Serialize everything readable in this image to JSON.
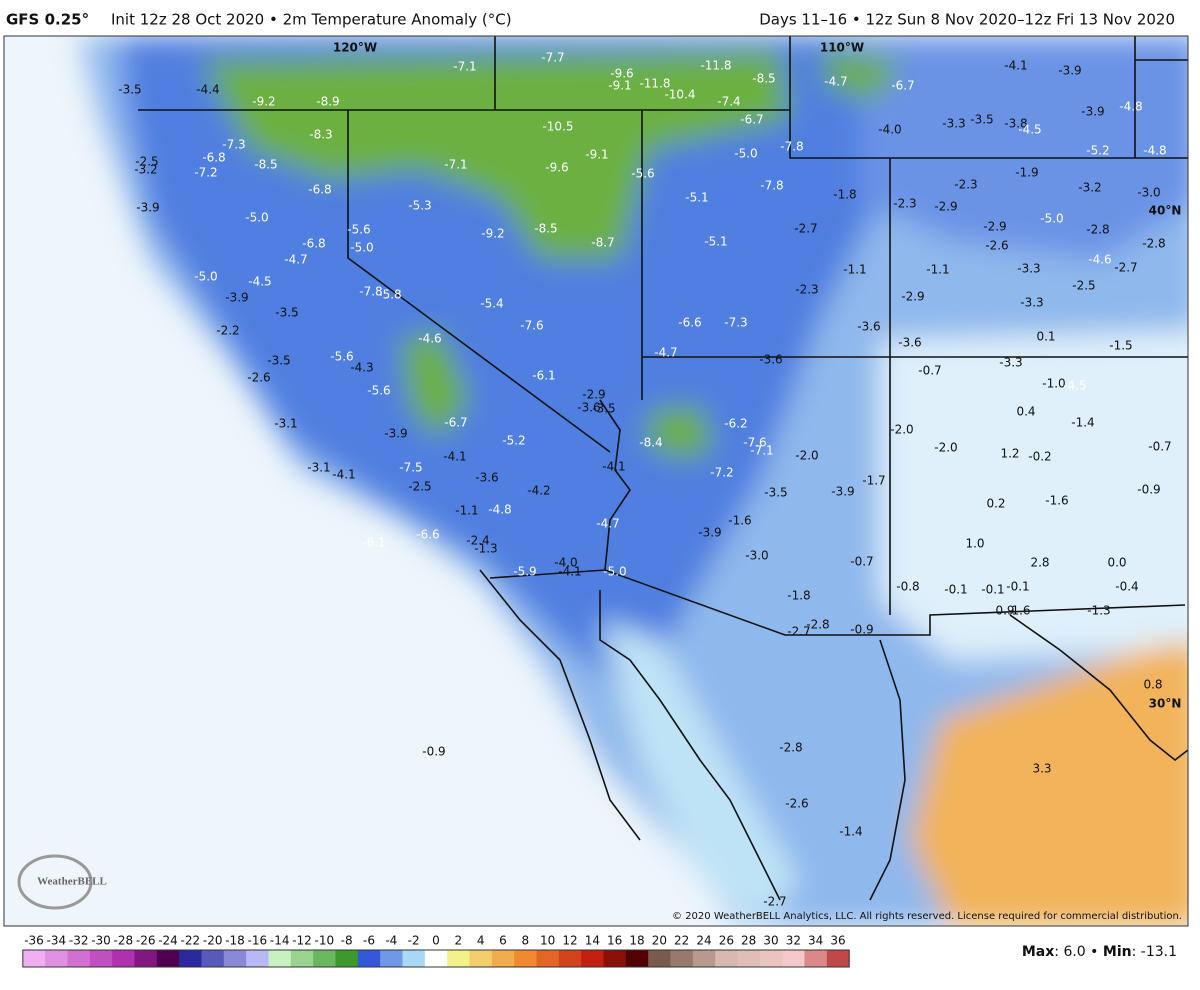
{
  "header": {
    "model": "GFS 0.25°",
    "title": "Init 12z 28 Oct 2020 • 2m Temperature Anomaly (°C)",
    "period": "Days 11–16 • 12z Sun 8 Nov 2020–12z Fri 13 Nov 2020"
  },
  "map": {
    "grid_labels": [
      "120°W",
      "110°W",
      "40°N",
      "30°N"
    ],
    "values": [
      "-3.5",
      "-4.4",
      "-9.2",
      "-8.9",
      "-7.1",
      "-7.7",
      "-9.6",
      "-9.1",
      "-11.8",
      "-11.8",
      "-10.4",
      "-8.5",
      "-7.4",
      "-4.7",
      "-6.7",
      "-4.1",
      "-3.9",
      "-3.9",
      "-4.8",
      "-8.3",
      "-10.5",
      "-6.7",
      "-4.0",
      "-3.3",
      "-3.5",
      "-3.8",
      "-4.5",
      "-7.3",
      "-9.1",
      "-5.0",
      "-7.8",
      "-5.2",
      "-4.8",
      "-6.8",
      "-2.5",
      "-3.2",
      "-7.2",
      "-8.5",
      "-7.1",
      "-9.6",
      "-5.6",
      "-1.9",
      "-2.3",
      "-6.8",
      "-5.1",
      "-7.8",
      "-1.8",
      "-3.2",
      "-3.0",
      "-3.9",
      "-5.3",
      "-2.3",
      "-2.9",
      "-5.0",
      "-5.0",
      "-5.6",
      "-9.2",
      "-8.5",
      "-8.7",
      "-5.1",
      "-2.7",
      "-2.9",
      "-2.8",
      "-5.0",
      "-6.8",
      "-2.6",
      "-2.8",
      "-4.7",
      "-4.6",
      "-2.7",
      "-1.1",
      "-1.1",
      "-3.3",
      "-5.0",
      "-4.5",
      "-2.3",
      "-2.5",
      "-3.9",
      "-7.8",
      "-5.8",
      "-2.9",
      "-3.3",
      "-5.4",
      "-3.5",
      "-2.2",
      "-7.6",
      "-6.6",
      "-7.3",
      "-3.6",
      "0.1",
      "-4.6",
      "-3.6",
      "-1.5",
      "-4.7",
      "-5.6",
      "-4.3",
      "-3.6",
      "-3.3",
      "-3.5",
      "-0.7",
      "-2.6",
      "-6.1",
      "-1.0",
      "-4.5",
      "-5.6",
      "-2.9",
      "-3.6",
      "-3.5",
      "0.4",
      "-6.7",
      "-6.2",
      "-1.4",
      "-3.1",
      "-3.9",
      "-2.0",
      "-8.4",
      "-7.6",
      "-7.1",
      "-5.2",
      "-2.0",
      "-0.7",
      "1.2",
      "-0.2",
      "-2.0",
      "-4.1",
      "-3.1",
      "-4.1",
      "-7.5",
      "-4.1",
      "-7.2",
      "-3.6",
      "-1.7",
      "-3.9",
      "-3.5",
      "-4.2",
      "-2.5",
      "-0.9",
      "-1.6",
      "0.2",
      "-1.1",
      "-4.8",
      "-4.7",
      "-1.6",
      "-3.9",
      "-6.6",
      "-6.1",
      "-2.4",
      "-1.3",
      "1.0",
      "-3.0",
      "-4.0",
      "-4.1",
      "-5.0",
      "-5.9",
      "2.8",
      "0.0",
      "-0.7",
      "-0.4",
      "-0.8",
      "-0.1",
      "-0.1",
      "-0.1",
      "0.9",
      "1.6",
      "-1.3",
      "-1.8",
      "-2.8",
      "-2.7",
      "-0.9",
      "0.8",
      "-0.9",
      "-2.8",
      "3.3",
      "-2.6",
      "-1.4",
      "-2.7"
    ],
    "logo": "WeatherBELL",
    "copyright": "© 2020 WeatherBELL Analytics, LLC. All rights reserved. License required for commercial distribution."
  },
  "colorbar": {
    "ticks": [
      -36,
      -34,
      -32,
      -30,
      -28,
      -26,
      -24,
      -22,
      -20,
      -18,
      -16,
      -14,
      -12,
      -10,
      -8,
      -6,
      -4,
      -2,
      0,
      2,
      4,
      6,
      8,
      10,
      12,
      14,
      16,
      18,
      20,
      22,
      24,
      26,
      28,
      30,
      32,
      34,
      36
    ]
  },
  "stats": {
    "max_label": "Max",
    "max": "6.0",
    "separator": "•",
    "min_label": "Min",
    "min": "-13.1"
  }
}
